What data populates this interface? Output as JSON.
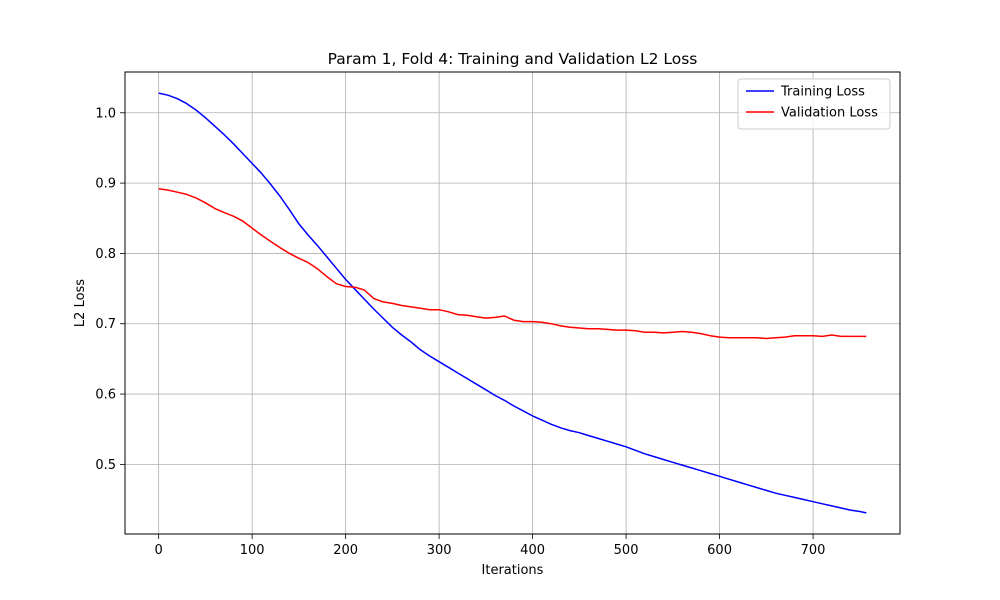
{
  "chart_data": {
    "type": "line",
    "title": "Param 1, Fold 4: Training and Validation L2 Loss",
    "xlabel": "Iterations",
    "ylabel": "L2 Loss",
    "xlim": [
      -36,
      793
    ],
    "ylim": [
      0.401,
      1.058
    ],
    "xticks": [
      0,
      100,
      200,
      300,
      400,
      500,
      600,
      700
    ],
    "yticks": [
      0.5,
      0.6,
      0.7,
      0.8,
      0.9,
      1.0
    ],
    "xtick_labels": [
      "0",
      "100",
      "200",
      "300",
      "400",
      "500",
      "600",
      "700"
    ],
    "ytick_labels": [
      "0.5",
      "0.6",
      "0.7",
      "0.8",
      "0.9",
      "1.0"
    ],
    "grid": true,
    "legend_position": "top-right",
    "series": [
      {
        "name": "Training Loss",
        "color": "#0000ff",
        "x": [
          0,
          10,
          20,
          30,
          40,
          50,
          60,
          70,
          80,
          90,
          100,
          110,
          120,
          130,
          140,
          150,
          160,
          170,
          180,
          190,
          200,
          210,
          220,
          230,
          240,
          250,
          260,
          270,
          280,
          290,
          300,
          310,
          320,
          330,
          340,
          350,
          360,
          370,
          380,
          390,
          400,
          410,
          420,
          430,
          440,
          450,
          460,
          470,
          480,
          490,
          500,
          510,
          520,
          530,
          540,
          550,
          560,
          570,
          580,
          590,
          600,
          610,
          620,
          630,
          640,
          650,
          660,
          670,
          680,
          690,
          700,
          710,
          720,
          730,
          740,
          750,
          757
        ],
        "y": [
          1.028,
          1.025,
          1.02,
          1.013,
          1.004,
          0.993,
          0.981,
          0.969,
          0.956,
          0.942,
          0.928,
          0.914,
          0.898,
          0.881,
          0.862,
          0.842,
          0.826,
          0.811,
          0.795,
          0.779,
          0.763,
          0.749,
          0.735,
          0.721,
          0.708,
          0.695,
          0.684,
          0.674,
          0.663,
          0.654,
          0.646,
          0.638,
          0.63,
          0.622,
          0.614,
          0.606,
          0.598,
          0.591,
          0.583,
          0.576,
          0.569,
          0.563,
          0.557,
          0.552,
          0.548,
          0.545,
          0.541,
          0.537,
          0.533,
          0.529,
          0.525,
          0.52,
          0.515,
          0.511,
          0.507,
          0.503,
          0.499,
          0.495,
          0.491,
          0.487,
          0.483,
          0.479,
          0.475,
          0.471,
          0.467,
          0.463,
          0.459,
          0.456,
          0.453,
          0.45,
          0.447,
          0.444,
          0.441,
          0.438,
          0.435,
          0.433,
          0.431
        ]
      },
      {
        "name": "Validation Loss",
        "color": "#ff0000",
        "x": [
          0,
          10,
          20,
          30,
          40,
          50,
          60,
          70,
          80,
          90,
          100,
          110,
          120,
          130,
          140,
          150,
          160,
          170,
          180,
          190,
          200,
          210,
          220,
          230,
          240,
          250,
          260,
          270,
          280,
          290,
          300,
          310,
          320,
          330,
          340,
          350,
          360,
          370,
          380,
          390,
          400,
          410,
          420,
          430,
          440,
          450,
          460,
          470,
          480,
          490,
          500,
          510,
          520,
          530,
          540,
          550,
          560,
          570,
          580,
          590,
          600,
          610,
          620,
          630,
          640,
          650,
          660,
          670,
          680,
          690,
          700,
          710,
          720,
          730,
          740,
          750,
          757
        ],
        "y": [
          0.892,
          0.89,
          0.887,
          0.884,
          0.879,
          0.872,
          0.864,
          0.858,
          0.853,
          0.846,
          0.836,
          0.826,
          0.817,
          0.808,
          0.8,
          0.793,
          0.787,
          0.778,
          0.767,
          0.757,
          0.753,
          0.752,
          0.748,
          0.736,
          0.731,
          0.729,
          0.726,
          0.724,
          0.722,
          0.72,
          0.72,
          0.717,
          0.713,
          0.712,
          0.71,
          0.708,
          0.709,
          0.711,
          0.705,
          0.703,
          0.703,
          0.702,
          0.7,
          0.697,
          0.695,
          0.694,
          0.693,
          0.693,
          0.692,
          0.691,
          0.691,
          0.69,
          0.688,
          0.688,
          0.687,
          0.688,
          0.689,
          0.688,
          0.686,
          0.683,
          0.681,
          0.68,
          0.68,
          0.68,
          0.68,
          0.679,
          0.68,
          0.681,
          0.683,
          0.683,
          0.683,
          0.682,
          0.684,
          0.682,
          0.682,
          0.682,
          0.682
        ]
      }
    ]
  }
}
